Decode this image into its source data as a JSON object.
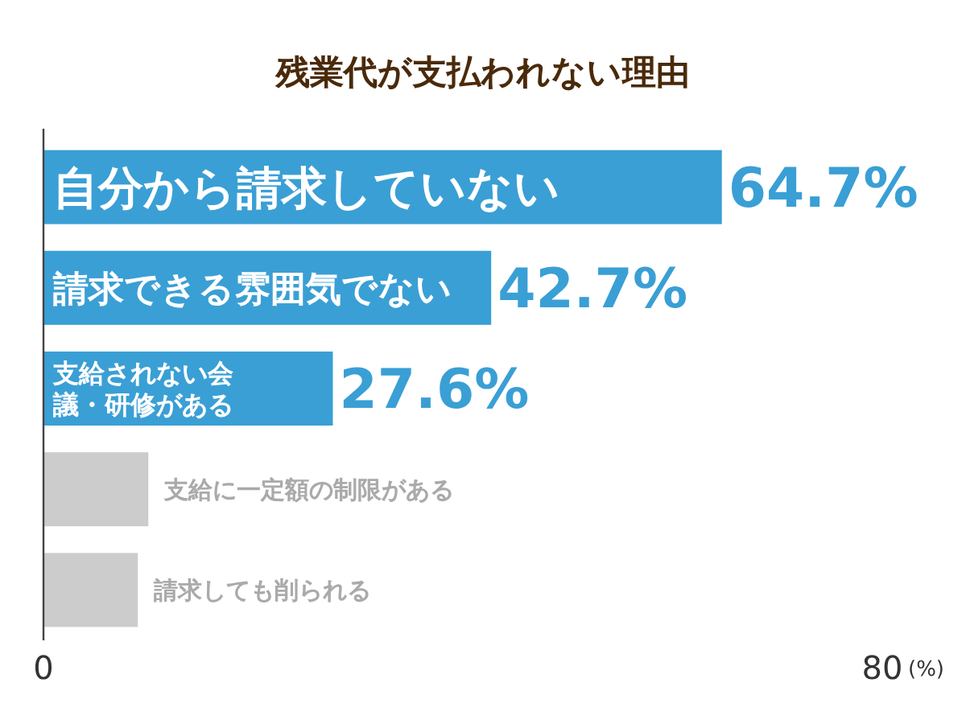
{
  "chart_data": {
    "type": "bar",
    "orientation": "horizontal",
    "title": "残業代が支払われない理由",
    "categories": [
      "自分から請求していない",
      "請求できる雰囲気でない",
      "支給されない会議・研修がある",
      "支給に一定額の制限がある",
      "請求しても削られる"
    ],
    "values": [
      64.7,
      42.7,
      27.6,
      10,
      9
    ],
    "colors": [
      "#3a9fd5",
      "#3a9fd5",
      "#3a9fd5",
      "#cccccc",
      "#cccccc"
    ],
    "value_labels": [
      "64.7%",
      "42.7%",
      "27.6%",
      null,
      null
    ],
    "xlim": [
      0,
      80
    ],
    "xticks": [
      0,
      80
    ],
    "xlabel": "(%)",
    "grid": false
  }
}
